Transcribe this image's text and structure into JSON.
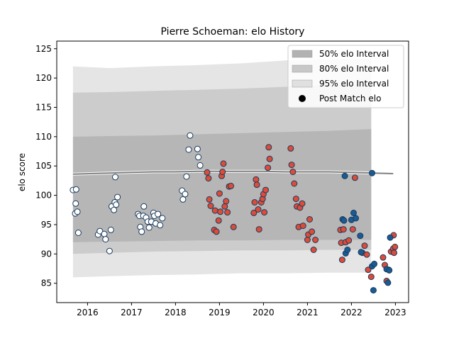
{
  "chart_data": {
    "type": "scatter",
    "title": "Pierre Schoeman: elo History",
    "xlabel": "",
    "ylabel": "elo score",
    "xlim": [
      2015.3,
      2023.3
    ],
    "ylim": [
      81.7,
      126.3
    ],
    "x_ticks": [
      2016,
      2017,
      2018,
      2019,
      2020,
      2021,
      2022,
      2023
    ],
    "y_ticks": [
      85,
      90,
      95,
      100,
      105,
      110,
      115,
      120,
      125
    ],
    "grid": false,
    "legend_position": "top-right",
    "legend": [
      {
        "label": "50% elo Interval",
        "kind": "patch",
        "color": "#b2b2b2"
      },
      {
        "label": "80% elo Interval",
        "kind": "patch",
        "color": "#c8c8c8"
      },
      {
        "label": "95% elo Interval",
        "kind": "patch",
        "color": "#e0e0e0"
      },
      {
        "label": "Post Match elo",
        "kind": "marker",
        "color": "#000000"
      }
    ],
    "intervals": {
      "x": [
        2015.67,
        2016.5,
        2017.5,
        2018.5,
        2019.5,
        2020.5,
        2021.5,
        2022.45
      ],
      "band95": {
        "lower": [
          86.0,
          86.2,
          86.4,
          86.5,
          86.7,
          86.7,
          86.8,
          86.8
        ],
        "upper": [
          122.0,
          121.7,
          122.0,
          122.2,
          122.5,
          123.0,
          123.2,
          123.3
        ]
      },
      "band80": {
        "lower": [
          90.0,
          90.2,
          90.4,
          90.5,
          90.6,
          90.6,
          90.7,
          90.7
        ],
        "upper": [
          117.5,
          117.6,
          117.8,
          118.0,
          118.2,
          118.5,
          118.8,
          119.0
        ]
      },
      "band50": {
        "lower": [
          92.0,
          92.1,
          92.2,
          92.3,
          92.3,
          92.4,
          92.4,
          92.4
        ],
        "upper": [
          110.0,
          110.1,
          110.2,
          110.4,
          110.6,
          110.8,
          111.0,
          111.3
        ]
      }
    },
    "mean_line": {
      "x": [
        2015.67,
        2016.5,
        2017.0,
        2017.5,
        2018.0,
        2018.5,
        2019.0,
        2019.5,
        2020.0,
        2020.5,
        2021.0,
        2021.5,
        2022.0,
        2022.5,
        2022.95
      ],
      "y": [
        103.6,
        103.8,
        103.9,
        104.0,
        104.0,
        104.1,
        104.1,
        104.1,
        104.1,
        104.0,
        104.0,
        104.0,
        103.9,
        103.8,
        103.7
      ]
    },
    "series": [
      {
        "color": "#ffffff",
        "points": [
          [
            2015.67,
            100.9
          ],
          [
            2015.74,
            101.0
          ],
          [
            2015.72,
            96.9
          ],
          [
            2015.77,
            97.2
          ],
          [
            2015.73,
            98.6
          ],
          [
            2015.79,
            93.6
          ],
          [
            2016.24,
            93.3
          ],
          [
            2016.28,
            93.9
          ],
          [
            2016.38,
            93.4
          ],
          [
            2016.41,
            92.5
          ],
          [
            2016.5,
            90.5
          ],
          [
            2016.53,
            94.1
          ],
          [
            2016.55,
            98.1
          ],
          [
            2016.6,
            97.5
          ],
          [
            2016.62,
            98.8
          ],
          [
            2016.65,
            98.4
          ],
          [
            2016.68,
            99.7
          ],
          [
            2016.63,
            103.1
          ],
          [
            2017.15,
            96.8
          ],
          [
            2017.18,
            96.5
          ],
          [
            2017.2,
            94.6
          ],
          [
            2017.23,
            93.8
          ],
          [
            2017.27,
            96.5
          ],
          [
            2017.28,
            98.1
          ],
          [
            2017.33,
            96.2
          ],
          [
            2017.37,
            95.5
          ],
          [
            2017.4,
            94.5
          ],
          [
            2017.45,
            95.5
          ],
          [
            2017.5,
            97.0
          ],
          [
            2017.52,
            96.5
          ],
          [
            2017.55,
            95.2
          ],
          [
            2017.6,
            96.8
          ],
          [
            2017.65,
            94.9
          ],
          [
            2017.7,
            96.1
          ],
          [
            2018.15,
            100.8
          ],
          [
            2018.17,
            99.3
          ],
          [
            2018.22,
            100.2
          ],
          [
            2018.25,
            103.2
          ],
          [
            2018.3,
            107.8
          ],
          [
            2018.33,
            110.2
          ],
          [
            2018.5,
            107.9
          ],
          [
            2018.52,
            106.5
          ],
          [
            2018.56,
            105.1
          ]
        ]
      },
      {
        "color": "#dd4b39",
        "points": [
          [
            2018.72,
            103.9
          ],
          [
            2018.75,
            102.9
          ],
          [
            2018.77,
            99.3
          ],
          [
            2018.8,
            98.2
          ],
          [
            2018.88,
            94.1
          ],
          [
            2018.9,
            97.4
          ],
          [
            2018.93,
            93.8
          ],
          [
            2018.98,
            95.7
          ],
          [
            2019.0,
            100.3
          ],
          [
            2019.02,
            97.2
          ],
          [
            2019.05,
            103.3
          ],
          [
            2019.07,
            104.0
          ],
          [
            2019.09,
            105.4
          ],
          [
            2019.12,
            98.1
          ],
          [
            2019.15,
            99.0
          ],
          [
            2019.18,
            97.1
          ],
          [
            2019.22,
            101.5
          ],
          [
            2019.26,
            101.6
          ],
          [
            2019.32,
            94.6
          ],
          [
            2019.78,
            97.0
          ],
          [
            2019.8,
            98.8
          ],
          [
            2019.83,
            102.7
          ],
          [
            2019.85,
            101.8
          ],
          [
            2019.88,
            97.6
          ],
          [
            2019.9,
            94.2
          ],
          [
            2019.95,
            98.8
          ],
          [
            2019.98,
            99.4
          ],
          [
            2020.0,
            100.2
          ],
          [
            2020.02,
            97.1
          ],
          [
            2020.05,
            100.9
          ],
          [
            2020.1,
            104.7
          ],
          [
            2020.12,
            108.2
          ],
          [
            2020.14,
            106.2
          ],
          [
            2020.62,
            108.0
          ],
          [
            2020.64,
            105.2
          ],
          [
            2020.67,
            104.0
          ],
          [
            2020.7,
            102.0
          ],
          [
            2020.74,
            99.4
          ],
          [
            2020.76,
            98.1
          ],
          [
            2020.8,
            94.6
          ],
          [
            2020.83,
            97.9
          ],
          [
            2020.88,
            98.6
          ],
          [
            2020.9,
            94.8
          ],
          [
            2021.0,
            92.4
          ],
          [
            2021.02,
            93.3
          ],
          [
            2021.05,
            95.9
          ],
          [
            2021.1,
            93.8
          ],
          [
            2021.14,
            90.7
          ],
          [
            2021.18,
            92.4
          ],
          [
            2021.75,
            94.1
          ],
          [
            2021.77,
            91.9
          ],
          [
            2021.79,
            89.0
          ],
          [
            2021.82,
            94.2
          ],
          [
            2021.87,
            92.0
          ],
          [
            2021.94,
            92.3
          ],
          [
            2022.03,
            94.2
          ],
          [
            2022.08,
            103.0
          ],
          [
            2022.25,
            90.2
          ],
          [
            2022.3,
            91.4
          ],
          [
            2022.35,
            89.9
          ],
          [
            2022.38,
            87.3
          ],
          [
            2022.45,
            86.1
          ],
          [
            2022.72,
            89.4
          ],
          [
            2022.76,
            88.1
          ],
          [
            2022.8,
            85.4
          ],
          [
            2022.85,
            87.3
          ],
          [
            2022.9,
            90.4
          ],
          [
            2022.95,
            90.9
          ],
          [
            2022.96,
            93.2
          ],
          [
            2022.99,
            91.2
          ],
          [
            2022.97,
            90.2
          ]
        ]
      },
      {
        "color": "#1a5b94",
        "points": [
          [
            2021.8,
            95.9
          ],
          [
            2021.83,
            95.7
          ],
          [
            2021.85,
            103.3
          ],
          [
            2021.87,
            90.1
          ],
          [
            2021.91,
            90.7
          ],
          [
            2022.0,
            95.8
          ],
          [
            2022.05,
            97.0
          ],
          [
            2022.1,
            96.1
          ],
          [
            2022.2,
            93.1
          ],
          [
            2022.22,
            90.3
          ],
          [
            2022.47,
            87.9
          ],
          [
            2022.52,
            88.3
          ],
          [
            2022.5,
            83.8
          ],
          [
            2022.47,
            103.8
          ],
          [
            2022.8,
            87.4
          ],
          [
            2022.83,
            85.1
          ],
          [
            2022.86,
            87.2
          ],
          [
            2022.88,
            92.8
          ]
        ]
      }
    ]
  }
}
